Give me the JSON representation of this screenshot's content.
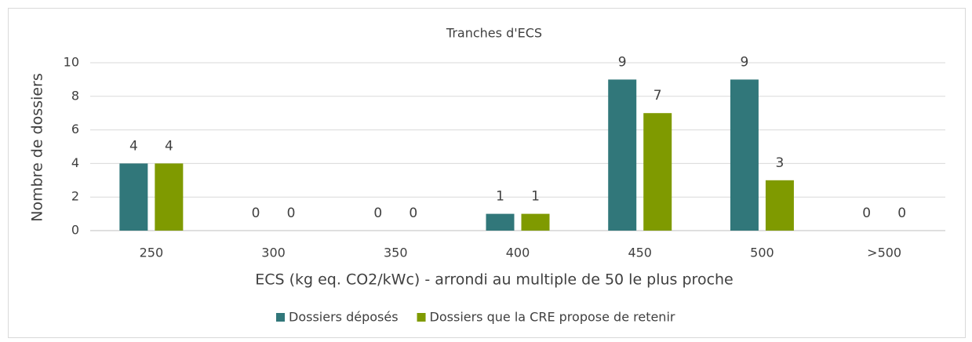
{
  "chart_data": {
    "type": "bar",
    "title": "Tranches d'ECS",
    "x_label": "ECS (kg eq. CO2/kWc) - arrondi au multiple de 50 le plus proche",
    "y_label": "Nombre de dossiers",
    "categories": [
      "250",
      "300",
      "350",
      "400",
      "450",
      "500",
      ">500"
    ],
    "series": [
      {
        "name": "Dossiers déposés",
        "color": "#31777a",
        "values": [
          4,
          0,
          0,
          1,
          9,
          9,
          0
        ]
      },
      {
        "name": "Dossiers que la CRE propose de retenir",
        "color": "#7f9a00",
        "values": [
          4,
          0,
          0,
          1,
          7,
          3,
          0
        ]
      }
    ],
    "ylim": [
      0,
      10
    ],
    "yticks": [
      0,
      2,
      4,
      6,
      8,
      10
    ],
    "grid": true,
    "legend": "bottom"
  }
}
